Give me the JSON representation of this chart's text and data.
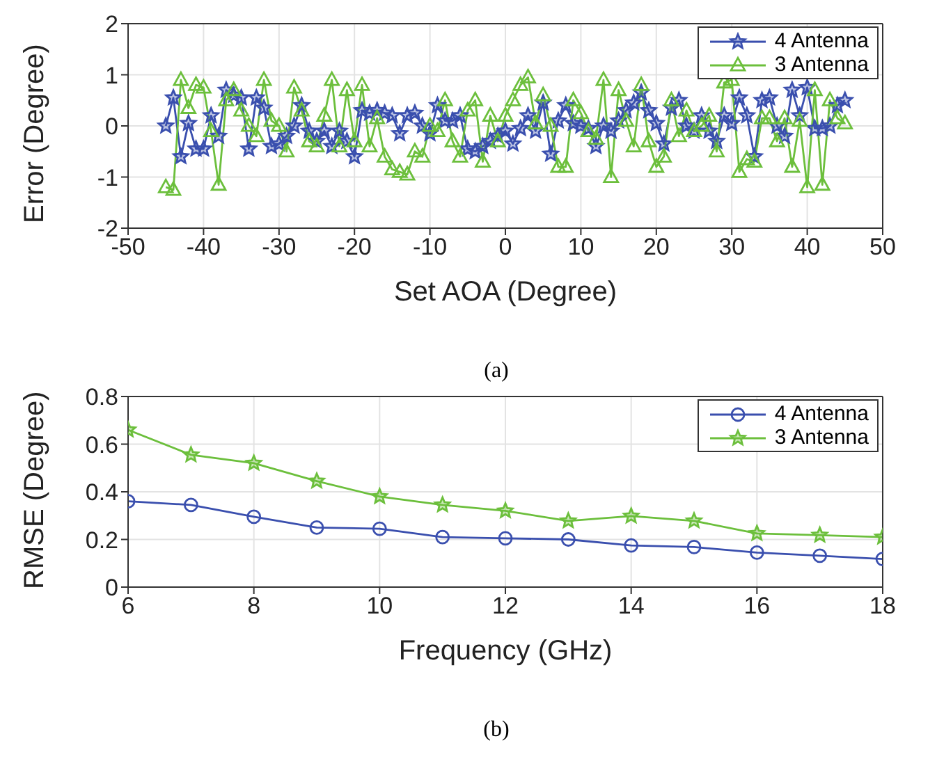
{
  "chart_data": [
    {
      "type": "line",
      "xlabel": "Set AOA (Degree)",
      "ylabel": "Error (Degree)",
      "annotations": [
        "(a)"
      ],
      "xlim": [
        -50,
        50
      ],
      "ylim": [
        -2,
        2
      ],
      "xticks": [
        -50,
        -40,
        -30,
        -20,
        -10,
        0,
        10,
        20,
        30,
        40,
        50
      ],
      "yticks": [
        -2,
        -1,
        0,
        1,
        2
      ],
      "grid": true,
      "legend": "top right",
      "x": [
        -45,
        -44,
        -43,
        -42,
        -41,
        -40,
        -39,
        -38,
        -37,
        -36,
        -35,
        -34,
        -33,
        -32,
        -31,
        -30,
        -29,
        -28,
        -27,
        -26,
        -25,
        -24,
        -23,
        -22,
        -21,
        -20,
        -19,
        -18,
        -17,
        -16,
        -15,
        -14,
        -13,
        -12,
        -11,
        -10,
        -9,
        -8,
        -7,
        -6,
        -5,
        -4,
        -3,
        -2,
        -1,
        0,
        1,
        2,
        3,
        4,
        5,
        6,
        7,
        8,
        9,
        10,
        11,
        12,
        13,
        14,
        15,
        16,
        17,
        18,
        19,
        20,
        21,
        22,
        23,
        24,
        25,
        26,
        27,
        28,
        29,
        30,
        31,
        32,
        33,
        34,
        35,
        36,
        37,
        38,
        39,
        40,
        41,
        42,
        43,
        44,
        45
      ],
      "series": [
        {
          "name": "4 Antenna",
          "color": "#3a4fae",
          "marker": "star",
          "values": [
            0,
            0.55,
            -0.6,
            0.05,
            -0.45,
            -0.45,
            0.2,
            -0.2,
            0.7,
            0.6,
            0.55,
            -0.45,
            0.55,
            0.35,
            -0.4,
            -0.35,
            -0.2,
            0,
            0.4,
            -0.1,
            -0.3,
            -0.1,
            -0.4,
            -0.1,
            -0.3,
            -0.6,
            0.3,
            0.25,
            0.3,
            0.25,
            0.2,
            -0.15,
            0.2,
            0.25,
            0,
            -0.15,
            0.4,
            0.1,
            0.1,
            0.2,
            -0.45,
            -0.5,
            -0.4,
            -0.3,
            -0.2,
            -0.1,
            -0.35,
            -0.05,
            0.2,
            -0.1,
            0.45,
            -0.55,
            0.1,
            0.4,
            0.05,
            0,
            -0.05,
            -0.4,
            0,
            -0.1,
            0.1,
            0.3,
            0.45,
            0.65,
            0.3,
            0.05,
            -0.35,
            0.35,
            0.5,
            0,
            -0.1,
            0.2,
            -0.1,
            -0.3,
            0.2,
            0.05,
            0.55,
            0.2,
            -0.6,
            0.5,
            0.55,
            0,
            -0.2,
            0.7,
            0.2,
            0.75,
            -0.05,
            -0.05,
            0,
            0.4,
            0.5
          ]
        },
        {
          "name": "3 Antenna",
          "color": "#6cbf3c",
          "marker": "triangle",
          "values": [
            -1.2,
            -1.25,
            0.9,
            0.35,
            0.8,
            0.75,
            -0.1,
            -1.15,
            0.5,
            0.7,
            0.3,
            0,
            -0.2,
            0.9,
            0.1,
            0,
            -0.5,
            0.75,
            0.3,
            -0.3,
            -0.4,
            0.2,
            0.9,
            -0.4,
            0.7,
            -0.3,
            0.8,
            -0.4,
            0.15,
            -0.6,
            -0.85,
            -0.9,
            -0.95,
            -0.5,
            -0.6,
            0,
            -0.1,
            0.5,
            -0.3,
            -0.6,
            0.3,
            0.5,
            -0.7,
            0.2,
            -0.3,
            0.2,
            0.5,
            0.8,
            0.95,
            0.05,
            0.6,
            0,
            -0.8,
            -0.8,
            0.5,
            0.25,
            -0.1,
            -0.25,
            0.9,
            -1,
            0.7,
            0.1,
            -0.4,
            0.8,
            -0.3,
            -0.8,
            -0.6,
            0.5,
            -0.2,
            0.3,
            -0.1,
            0,
            0.2,
            -0.5,
            0.85,
            0.9,
            -0.9,
            -0.65,
            -0.7,
            0.15,
            0.15,
            -0.3,
            0.15,
            -0.8,
            0.1,
            -1.2,
            0.7,
            -1.15,
            0.5,
            0.15,
            0.05
          ]
        }
      ]
    },
    {
      "type": "line",
      "xlabel": "Frequency (GHz)",
      "ylabel": "RMSE (Degree)",
      "annotations": [
        "(b)"
      ],
      "xlim": [
        6,
        18
      ],
      "ylim": [
        0,
        0.8
      ],
      "xticks": [
        6,
        8,
        10,
        12,
        14,
        16,
        18
      ],
      "yticks": [
        0,
        0.2,
        0.4,
        0.6,
        0.8
      ],
      "grid": true,
      "legend": "top right",
      "x": [
        6,
        7,
        8,
        9,
        10,
        11,
        12,
        13,
        14,
        15,
        16,
        17,
        18
      ],
      "series": [
        {
          "name": "4 Antenna",
          "color": "#3a4fae",
          "marker": "circle",
          "values": [
            0.36,
            0.345,
            0.295,
            0.25,
            0.245,
            0.21,
            0.205,
            0.2,
            0.175,
            0.168,
            0.145,
            0.132,
            0.118
          ]
        },
        {
          "name": "3 Antenna",
          "color": "#6cbf3c",
          "marker": "star",
          "values": [
            0.66,
            0.555,
            0.52,
            0.445,
            0.38,
            0.345,
            0.32,
            0.278,
            0.298,
            0.278,
            0.225,
            0.218,
            0.21
          ]
        }
      ]
    }
  ]
}
